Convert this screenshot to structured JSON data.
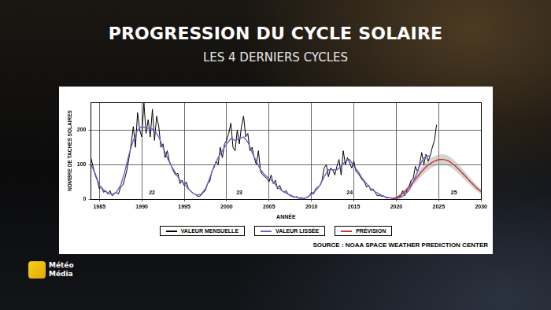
{
  "chart_data": {
    "type": "line",
    "title": "PROGRESSION DU CYCLE SOLAIRE",
    "subtitle": "LES 4 DERNIERS CYCLES",
    "x_label": "ANNÉE",
    "y_label": "NOMBRE DE TACHES SOLAIRES",
    "xlim": [
      1984,
      2030
    ],
    "xticks": [
      1985,
      1990,
      1995,
      2000,
      2005,
      2010,
      2015,
      2020,
      2025,
      2030
    ],
    "ylim": [
      0,
      280
    ],
    "yticks": [
      0,
      100,
      200
    ],
    "grid": true,
    "legend": "bottom",
    "series": [
      {
        "name": "VALEUR MENSUELLE",
        "color": "#000000",
        "x": [
          1984,
          1984.25,
          1984.5,
          1984.75,
          1985,
          1985.25,
          1985.5,
          1985.75,
          1986,
          1986.25,
          1986.5,
          1986.75,
          1987,
          1987.25,
          1987.5,
          1987.75,
          1988,
          1988.25,
          1988.5,
          1988.75,
          1989,
          1989.25,
          1989.5,
          1989.75,
          1990,
          1990.25,
          1990.5,
          1990.75,
          1991,
          1991.25,
          1991.5,
          1991.75,
          1992,
          1992.25,
          1992.5,
          1992.75,
          1993,
          1993.25,
          1993.5,
          1993.75,
          1994,
          1994.25,
          1994.5,
          1994.75,
          1995,
          1995.25,
          1995.5,
          1995.75,
          1996,
          1996.25,
          1996.5,
          1996.75,
          1997,
          1997.25,
          1997.5,
          1997.75,
          1998,
          1998.25,
          1998.5,
          1998.75,
          1999,
          1999.25,
          1999.5,
          1999.75,
          2000,
          2000.25,
          2000.5,
          2000.75,
          2001,
          2001.25,
          2001.5,
          2001.75,
          2002,
          2002.25,
          2002.5,
          2002.75,
          2003,
          2003.25,
          2003.5,
          2003.75,
          2004,
          2004.25,
          2004.5,
          2004.75,
          2005,
          2005.25,
          2005.5,
          2005.75,
          2006,
          2006.25,
          2006.5,
          2006.75,
          2007,
          2007.25,
          2007.5,
          2007.75,
          2008,
          2008.25,
          2008.5,
          2008.75,
          2009,
          2009.25,
          2009.5,
          2009.75,
          2010,
          2010.25,
          2010.5,
          2010.75,
          2011,
          2011.25,
          2011.5,
          2011.75,
          2012,
          2012.25,
          2012.5,
          2012.75,
          2013,
          2013.25,
          2013.5,
          2013.75,
          2014,
          2014.25,
          2014.5,
          2014.75,
          2015,
          2015.25,
          2015.5,
          2015.75,
          2016,
          2016.25,
          2016.5,
          2016.75,
          2017,
          2017.25,
          2017.5,
          2017.75,
          2018,
          2018.25,
          2018.5,
          2018.75,
          2019,
          2019.25,
          2019.5,
          2019.75,
          2020,
          2020.25,
          2020.5,
          2020.75,
          2021,
          2021.25,
          2021.5,
          2021.75,
          2022,
          2022.25,
          2022.5,
          2022.75,
          2023,
          2023.25,
          2023.5,
          2023.75,
          2024,
          2024.25,
          2024.5,
          2024.75
        ],
        "values": [
          120,
          95,
          70,
          55,
          30,
          35,
          20,
          25,
          15,
          25,
          10,
          15,
          20,
          15,
          35,
          40,
          60,
          85,
          120,
          160,
          210,
          150,
          250,
          200,
          180,
          280,
          190,
          230,
          180,
          260,
          170,
          240,
          210,
          150,
          160,
          120,
          140,
          110,
          95,
          80,
          70,
          75,
          45,
          55,
          40,
          50,
          30,
          25,
          18,
          15,
          10,
          8,
          12,
          20,
          25,
          45,
          50,
          80,
          90,
          110,
          100,
          150,
          120,
          160,
          170,
          190,
          220,
          150,
          140,
          200,
          160,
          210,
          240,
          180,
          190,
          140,
          150,
          120,
          100,
          140,
          80,
          70,
          65,
          60,
          50,
          70,
          45,
          55,
          30,
          40,
          25,
          20,
          25,
          15,
          10,
          8,
          5,
          8,
          3,
          5,
          2,
          3,
          5,
          10,
          20,
          15,
          30,
          35,
          40,
          55,
          90,
          100,
          65,
          90,
          85,
          70,
          95,
          115,
          70,
          140,
          100,
          120,
          105,
          90,
          110,
          80,
          75,
          65,
          55,
          50,
          35,
          40,
          25,
          30,
          20,
          10,
          12,
          8,
          10,
          5,
          3,
          5,
          2,
          1,
          2,
          5,
          8,
          25,
          10,
          25,
          35,
          55,
          60,
          95,
          80,
          100,
          135,
          100,
          130,
          110,
          125,
          150,
          170,
          215
        ]
      },
      {
        "name": "VALEUR LISSÉE",
        "color": "#7b5ccc",
        "x": [
          1984,
          1984.5,
          1985,
          1985.5,
          1986,
          1986.5,
          1987,
          1987.5,
          1988,
          1988.5,
          1989,
          1989.5,
          1990,
          1990.5,
          1991,
          1991.5,
          1992,
          1992.5,
          1993,
          1993.5,
          1994,
          1994.5,
          1995,
          1995.5,
          1996,
          1996.5,
          1997,
          1997.5,
          1998,
          1998.5,
          1999,
          1999.5,
          2000,
          2000.5,
          2001,
          2001.5,
          2002,
          2002.5,
          2003,
          2003.5,
          2004,
          2004.5,
          2005,
          2005.5,
          2006,
          2006.5,
          2007,
          2007.5,
          2008,
          2008.5,
          2009,
          2009.5,
          2010,
          2010.5,
          2011,
          2011.5,
          2012,
          2012.5,
          2013,
          2013.5,
          2014,
          2014.5,
          2015,
          2015.5,
          2016,
          2016.5,
          2017,
          2017.5,
          2018,
          2018.5,
          2019,
          2019.5,
          2020,
          2020.5,
          2021,
          2021.5,
          2022,
          2022.5,
          2023,
          2023.5,
          2024
        ],
        "values": [
          100,
          75,
          40,
          27,
          18,
          14,
          20,
          40,
          80,
          130,
          170,
          200,
          210,
          205,
          205,
          200,
          180,
          150,
          120,
          95,
          75,
          55,
          45,
          30,
          18,
          12,
          15,
          30,
          60,
          95,
          120,
          140,
          160,
          175,
          170,
          175,
          180,
          165,
          135,
          110,
          85,
          70,
          60,
          50,
          35,
          25,
          18,
          12,
          7,
          3,
          2,
          5,
          15,
          25,
          40,
          65,
          85,
          85,
          85,
          95,
          110,
          115,
          95,
          80,
          60,
          45,
          30,
          22,
          15,
          8,
          5,
          3,
          2,
          5,
          13,
          25,
          50,
          80,
          110,
          125,
          125
        ]
      },
      {
        "name": "PRÉVISION",
        "color": "#c0392b",
        "x": [
          2019.5,
          2020,
          2020.5,
          2021,
          2021.5,
          2022,
          2022.5,
          2023,
          2023.5,
          2024,
          2024.5,
          2025,
          2025.5,
          2026,
          2026.5,
          2027,
          2027.5,
          2028,
          2028.5,
          2029,
          2029.5,
          2030
        ],
        "values": [
          2,
          5,
          12,
          22,
          35,
          50,
          65,
          80,
          93,
          103,
          110,
          114,
          115,
          112,
          105,
          95,
          83,
          70,
          57,
          44,
          32,
          22
        ],
        "lower": [
          1,
          3,
          8,
          16,
          27,
          40,
          53,
          67,
          79,
          88,
          95,
          99,
          100,
          97,
          91,
          81,
          70,
          58,
          46,
          34,
          23,
          14
        ],
        "upper": [
          3,
          7,
          16,
          28,
          43,
          60,
          77,
          93,
          107,
          118,
          125,
          129,
          130,
          127,
          119,
          109,
          96,
          82,
          68,
          54,
          41,
          30
        ]
      }
    ],
    "annotations": [
      {
        "text": "22",
        "x": 1991.2,
        "y": 10
      },
      {
        "text": "23",
        "x": 2001.5,
        "y": 10
      },
      {
        "text": "24",
        "x": 2014.5,
        "y": 10
      },
      {
        "text": "25",
        "x": 2026.8,
        "y": 10
      }
    ],
    "source": "SOURCE : NOAA SPACE WEATHER PREDICTION CENTER",
    "logo": [
      "Météo",
      "Média"
    ]
  }
}
